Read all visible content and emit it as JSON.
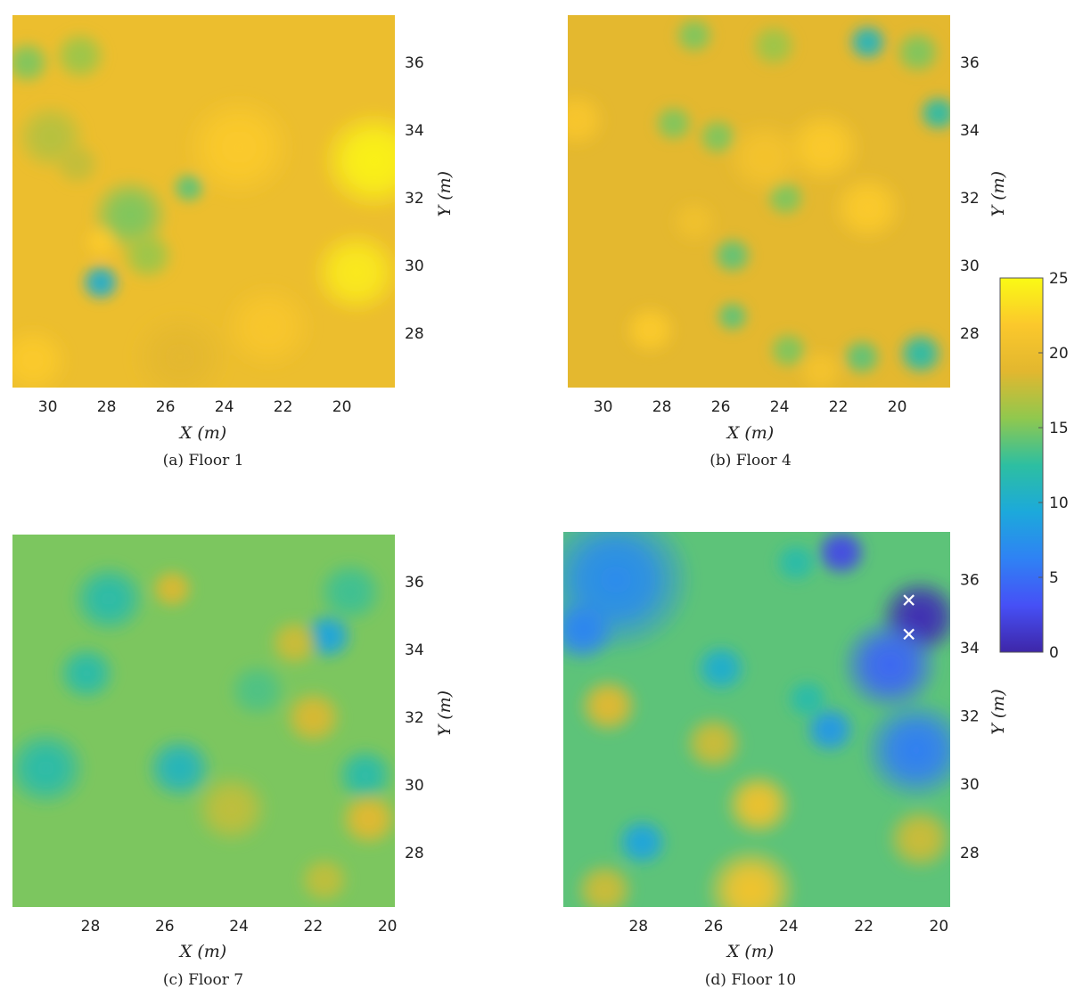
{
  "figure": {
    "colorscale": {
      "name": "parula",
      "min": 0,
      "max": 25,
      "ticks": [
        0,
        5,
        10,
        15,
        20,
        25
      ],
      "stops": [
        "#3e26a8",
        "#4650f6",
        "#2f82f4",
        "#1ca9db",
        "#2dbfa1",
        "#90c84e",
        "#e2b72f",
        "#fbc82c",
        "#fafa14"
      ]
    },
    "marker_color": "#ffffff"
  },
  "chart_data": [
    {
      "type": "heatmap",
      "caption": "(a) Floor 1",
      "xlabel": "X (m)",
      "ylabel": "Y (m)",
      "x_reversed": true,
      "xlim": [
        18.2,
        31.2
      ],
      "ylim": [
        26.4,
        37.4
      ],
      "xticks": [
        30,
        28,
        26,
        24,
        22,
        20
      ],
      "yticks": [
        28,
        30,
        32,
        34,
        36
      ],
      "background_value": 20,
      "blobs": [
        {
          "x": 28.2,
          "y": 29.5,
          "value": 10,
          "r": 0.7
        },
        {
          "x": 27.2,
          "y": 31.5,
          "value": 15,
          "r": 1.3
        },
        {
          "x": 25.2,
          "y": 32.3,
          "value": 14,
          "r": 0.6
        },
        {
          "x": 26.6,
          "y": 30.3,
          "value": 16,
          "r": 0.9
        },
        {
          "x": 29.9,
          "y": 33.8,
          "value": 17,
          "r": 1.2
        },
        {
          "x": 28.9,
          "y": 36.2,
          "value": 16,
          "r": 0.9
        },
        {
          "x": 30.7,
          "y": 36.0,
          "value": 15,
          "r": 0.8
        },
        {
          "x": 28.2,
          "y": 30.7,
          "value": 22,
          "r": 0.6
        },
        {
          "x": 18.9,
          "y": 33.1,
          "value": 24.5,
          "r": 1.8
        },
        {
          "x": 19.5,
          "y": 29.8,
          "value": 24,
          "r": 1.5
        },
        {
          "x": 23.5,
          "y": 33.5,
          "value": 22,
          "r": 1.8
        },
        {
          "x": 22.5,
          "y": 28.2,
          "value": 21.5,
          "r": 1.5
        },
        {
          "x": 30.5,
          "y": 27.2,
          "value": 22,
          "r": 1.2
        },
        {
          "x": 25.5,
          "y": 27.3,
          "value": 19,
          "r": 1.6
        },
        {
          "x": 29.0,
          "y": 33.0,
          "value": 17.5,
          "r": 0.8
        }
      ]
    },
    {
      "type": "heatmap",
      "caption": "(b) Floor 4",
      "xlabel": "X (m)",
      "ylabel": "Y (m)",
      "x_reversed": true,
      "xlim": [
        18.2,
        31.2
      ],
      "ylim": [
        26.4,
        37.4
      ],
      "xticks": [
        30,
        28,
        26,
        24,
        22,
        20
      ],
      "yticks": [
        28,
        30,
        32,
        34,
        36
      ],
      "background_value": 19,
      "blobs": [
        {
          "x": 21.0,
          "y": 36.6,
          "value": 11,
          "r": 0.7
        },
        {
          "x": 18.6,
          "y": 34.5,
          "value": 12,
          "r": 0.7
        },
        {
          "x": 19.3,
          "y": 36.3,
          "value": 15,
          "r": 0.8
        },
        {
          "x": 19.2,
          "y": 27.4,
          "value": 12,
          "r": 0.8
        },
        {
          "x": 21.2,
          "y": 27.3,
          "value": 14,
          "r": 0.7
        },
        {
          "x": 25.6,
          "y": 30.3,
          "value": 14,
          "r": 0.7
        },
        {
          "x": 26.9,
          "y": 36.8,
          "value": 15,
          "r": 0.7
        },
        {
          "x": 27.6,
          "y": 34.2,
          "value": 15,
          "r": 0.7
        },
        {
          "x": 26.1,
          "y": 33.8,
          "value": 15,
          "r": 0.7
        },
        {
          "x": 23.8,
          "y": 32.0,
          "value": 15,
          "r": 0.7
        },
        {
          "x": 24.2,
          "y": 36.5,
          "value": 16,
          "r": 0.8
        },
        {
          "x": 23.7,
          "y": 27.5,
          "value": 15,
          "r": 0.7
        },
        {
          "x": 25.6,
          "y": 28.5,
          "value": 14,
          "r": 0.6
        },
        {
          "x": 30.9,
          "y": 34.3,
          "value": 21.5,
          "r": 1.0
        },
        {
          "x": 22.5,
          "y": 33.5,
          "value": 22,
          "r": 1.3
        },
        {
          "x": 21.0,
          "y": 31.7,
          "value": 22,
          "r": 1.2
        },
        {
          "x": 28.4,
          "y": 28.1,
          "value": 22,
          "r": 0.9
        },
        {
          "x": 24.5,
          "y": 33.2,
          "value": 21,
          "r": 1.3
        },
        {
          "x": 26.9,
          "y": 31.3,
          "value": 20.5,
          "r": 0.8
        },
        {
          "x": 22.6,
          "y": 26.9,
          "value": 21,
          "r": 0.8
        }
      ]
    },
    {
      "type": "heatmap",
      "caption": "(c) Floor 7",
      "xlabel": "X (m)",
      "ylabel": "Y (m)",
      "x_reversed": true,
      "xlim": [
        19.8,
        30.1
      ],
      "ylim": [
        26.4,
        37.4
      ],
      "xticks": [
        28,
        26,
        24,
        22,
        20
      ],
      "yticks": [
        28,
        30,
        32,
        34,
        36
      ],
      "background_value": 15,
      "blobs": [
        {
          "x": 21.6,
          "y": 34.4,
          "value": 9,
          "r": 0.7
        },
        {
          "x": 25.6,
          "y": 30.5,
          "value": 11,
          "r": 0.9
        },
        {
          "x": 29.2,
          "y": 30.5,
          "value": 12,
          "r": 1.1
        },
        {
          "x": 27.5,
          "y": 35.5,
          "value": 12,
          "r": 1.0
        },
        {
          "x": 28.1,
          "y": 33.3,
          "value": 12,
          "r": 0.8
        },
        {
          "x": 20.6,
          "y": 30.3,
          "value": 12,
          "r": 0.8
        },
        {
          "x": 21.0,
          "y": 35.7,
          "value": 13,
          "r": 0.9
        },
        {
          "x": 23.5,
          "y": 32.8,
          "value": 13.5,
          "r": 0.8
        },
        {
          "x": 25.8,
          "y": 35.8,
          "value": 18.5,
          "r": 0.6
        },
        {
          "x": 22.0,
          "y": 32.0,
          "value": 18.5,
          "r": 0.8
        },
        {
          "x": 20.5,
          "y": 29.0,
          "value": 19,
          "r": 0.8
        },
        {
          "x": 22.5,
          "y": 34.2,
          "value": 18,
          "r": 0.7
        },
        {
          "x": 24.2,
          "y": 29.3,
          "value": 17.5,
          "r": 1.0
        },
        {
          "x": 21.7,
          "y": 27.2,
          "value": 17.5,
          "r": 0.7
        }
      ]
    },
    {
      "type": "heatmap",
      "caption": "(d) Floor 10",
      "xlabel": "X (m)",
      "ylabel": "Y (m)",
      "x_reversed": true,
      "xlim": [
        19.7,
        30.0
      ],
      "ylim": [
        26.4,
        37.4
      ],
      "xticks": [
        28,
        26,
        24,
        22,
        20
      ],
      "yticks": [
        28,
        30,
        32,
        34,
        36
      ],
      "background_value": 14,
      "blobs": [
        {
          "x": 20.5,
          "y": 34.9,
          "value": 0.5,
          "r": 1.1
        },
        {
          "x": 22.6,
          "y": 36.8,
          "value": 2.5,
          "r": 0.7
        },
        {
          "x": 21.3,
          "y": 33.5,
          "value": 4.5,
          "r": 1.3
        },
        {
          "x": 20.6,
          "y": 31.0,
          "value": 6,
          "r": 1.4
        },
        {
          "x": 28.6,
          "y": 36.0,
          "value": 7,
          "r": 2.0
        },
        {
          "x": 29.5,
          "y": 34.5,
          "value": 6.5,
          "r": 0.9
        },
        {
          "x": 22.9,
          "y": 31.6,
          "value": 8,
          "r": 0.7
        },
        {
          "x": 27.9,
          "y": 28.3,
          "value": 9,
          "r": 0.7
        },
        {
          "x": 25.8,
          "y": 33.4,
          "value": 10,
          "r": 0.7
        },
        {
          "x": 23.5,
          "y": 32.5,
          "value": 12,
          "r": 0.6
        },
        {
          "x": 23.8,
          "y": 36.5,
          "value": 12,
          "r": 0.6
        },
        {
          "x": 28.8,
          "y": 32.3,
          "value": 19,
          "r": 0.8
        },
        {
          "x": 24.8,
          "y": 29.4,
          "value": 20.5,
          "r": 0.9
        },
        {
          "x": 25.0,
          "y": 26.9,
          "value": 21,
          "r": 1.2
        },
        {
          "x": 20.5,
          "y": 28.4,
          "value": 18,
          "r": 0.9
        },
        {
          "x": 26.0,
          "y": 31.2,
          "value": 18,
          "r": 0.8
        },
        {
          "x": 28.9,
          "y": 26.9,
          "value": 18,
          "r": 0.8
        }
      ],
      "markers": [
        {
          "x": 20.8,
          "y": 35.4,
          "symbol": "x"
        },
        {
          "x": 20.8,
          "y": 34.4,
          "symbol": "x"
        }
      ]
    }
  ]
}
